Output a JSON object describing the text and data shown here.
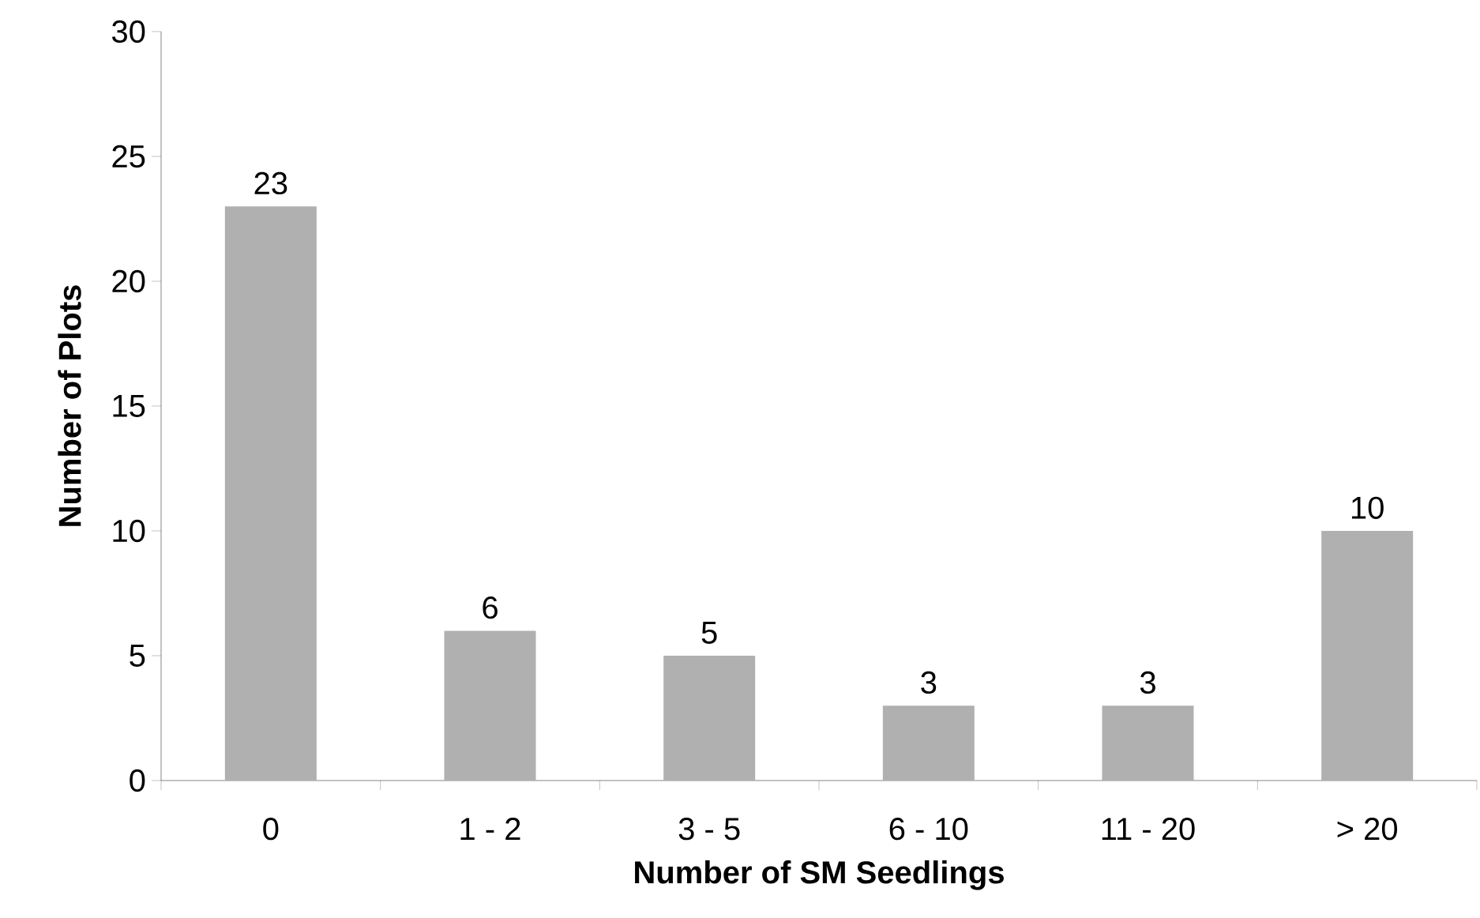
{
  "chart_data": {
    "type": "bar",
    "xlabel": "Number of SM Seedlings",
    "ylabel": "Number of Plots",
    "categories": [
      "0",
      "1 - 2",
      "3 - 5",
      "6 - 10",
      "11 - 20",
      "> 20"
    ],
    "values": [
      23,
      6,
      5,
      3,
      3,
      10
    ],
    "color": "#b0b0b0",
    "ylim": [
      0,
      30
    ],
    "yticks": [
      0,
      5,
      10,
      15,
      20,
      25,
      30
    ],
    "data_labels": true
  }
}
